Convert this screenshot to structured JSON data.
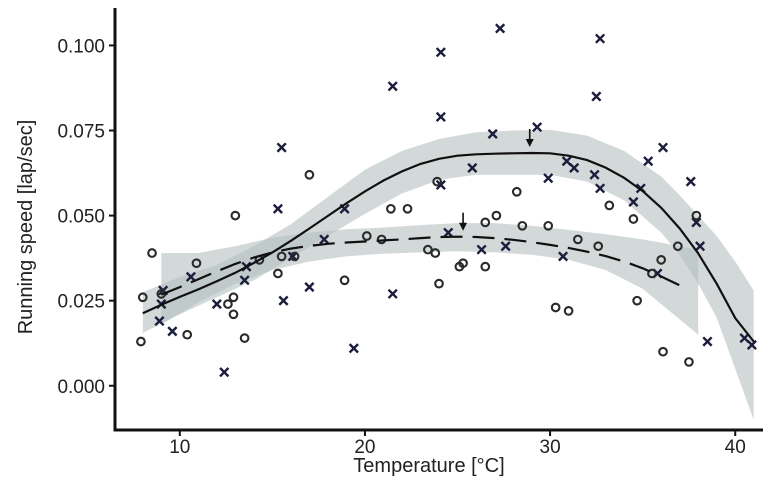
{
  "chart_data": {
    "type": "scatter",
    "title": "",
    "xlabel": "Temperature [°C]",
    "ylabel": "Running speed [lap/sec]",
    "xlim": [
      6.5,
      41.5
    ],
    "ylim": [
      -0.013,
      0.111
    ],
    "x_ticks": [
      {
        "value": 10,
        "label": "10"
      },
      {
        "value": 20,
        "label": "20"
      },
      {
        "value": 30,
        "label": "30"
      },
      {
        "value": 40,
        "label": "40"
      }
    ],
    "y_ticks": [
      {
        "value": 0.0,
        "label": "0.000"
      },
      {
        "value": 0.025,
        "label": "0.025"
      },
      {
        "value": 0.05,
        "label": "0.050"
      },
      {
        "value": 0.075,
        "label": "0.075"
      },
      {
        "value": 0.1,
        "label": "0.100"
      }
    ],
    "grid": false,
    "legend": null,
    "colors": {
      "ribbon": "#b6c0c0",
      "cross": "#1c1c3c",
      "circle": "#2a2a2a",
      "fit": "#111111"
    },
    "series": [
      {
        "marker": "cross",
        "fit_style": "solid",
        "points": [
          [
            8.9,
            0.019
          ],
          [
            9.0,
            0.024
          ],
          [
            9.1,
            0.028
          ],
          [
            9.6,
            0.016
          ],
          [
            10.6,
            0.032
          ],
          [
            12.0,
            0.024
          ],
          [
            12.4,
            0.004
          ],
          [
            13.5,
            0.031
          ],
          [
            13.6,
            0.035
          ],
          [
            15.3,
            0.052
          ],
          [
            15.5,
            0.07
          ],
          [
            15.6,
            0.025
          ],
          [
            16.1,
            0.038
          ],
          [
            17.0,
            0.029
          ],
          [
            17.8,
            0.043
          ],
          [
            18.9,
            0.052
          ],
          [
            19.4,
            0.011
          ],
          [
            21.5,
            0.027
          ],
          [
            21.5,
            0.088
          ],
          [
            24.1,
            0.098
          ],
          [
            24.1,
            0.079
          ],
          [
            24.1,
            0.059
          ],
          [
            24.5,
            0.045
          ],
          [
            25.8,
            0.064
          ],
          [
            26.3,
            0.04
          ],
          [
            26.9,
            0.074
          ],
          [
            27.3,
            0.105
          ],
          [
            27.6,
            0.041
          ],
          [
            29.3,
            0.076
          ],
          [
            29.9,
            0.061
          ],
          [
            30.7,
            0.038
          ],
          [
            30.9,
            0.066
          ],
          [
            31.3,
            0.064
          ],
          [
            32.4,
            0.062
          ],
          [
            32.5,
            0.085
          ],
          [
            32.7,
            0.058
          ],
          [
            32.7,
            0.102
          ],
          [
            34.5,
            0.054
          ],
          [
            34.9,
            0.058
          ],
          [
            35.3,
            0.066
          ],
          [
            35.8,
            0.033
          ],
          [
            36.1,
            0.07
          ],
          [
            37.6,
            0.06
          ],
          [
            37.9,
            0.048
          ],
          [
            38.1,
            0.041
          ],
          [
            38.5,
            0.013
          ],
          [
            40.5,
            0.014
          ],
          [
            40.9,
            0.012
          ]
        ],
        "fit": [
          [
            8,
            0.0213
          ],
          [
            9,
            0.0238
          ],
          [
            10,
            0.0261
          ],
          [
            11,
            0.0283
          ],
          [
            12,
            0.0307
          ],
          [
            13,
            0.0332
          ],
          [
            14,
            0.0361
          ],
          [
            15,
            0.0392
          ],
          [
            16,
            0.0426
          ],
          [
            17,
            0.0462
          ],
          [
            18,
            0.0499
          ],
          [
            19,
            0.0536
          ],
          [
            20,
            0.0571
          ],
          [
            21,
            0.0603
          ],
          [
            22,
            0.063
          ],
          [
            23,
            0.0652
          ],
          [
            24,
            0.0667
          ],
          [
            25,
            0.0676
          ],
          [
            26,
            0.068
          ],
          [
            27,
            0.0682
          ],
          [
            28,
            0.0683
          ],
          [
            29,
            0.0684
          ],
          [
            30,
            0.0683
          ],
          [
            31,
            0.0676
          ],
          [
            32,
            0.0663
          ],
          [
            33,
            0.0641
          ],
          [
            34,
            0.0611
          ],
          [
            35,
            0.0572
          ],
          [
            36,
            0.0523
          ],
          [
            37,
            0.0462
          ],
          [
            38,
            0.0389
          ],
          [
            39,
            0.03
          ],
          [
            40,
            0.0199
          ],
          [
            41,
            0.013
          ]
        ],
        "ribbon_lower": [
          [
            8,
            0.0155
          ],
          [
            10,
            0.021
          ],
          [
            12,
            0.026
          ],
          [
            14,
            0.031
          ],
          [
            16,
            0.0375
          ],
          [
            18,
            0.044
          ],
          [
            20,
            0.0505
          ],
          [
            22,
            0.0565
          ],
          [
            24,
            0.0605
          ],
          [
            26,
            0.062
          ],
          [
            28,
            0.062
          ],
          [
            30,
            0.062
          ],
          [
            32,
            0.06
          ],
          [
            34,
            0.0545
          ],
          [
            36,
            0.045
          ],
          [
            37,
            0.0385
          ],
          [
            38,
            0.03
          ],
          [
            39,
            0.02
          ],
          [
            40,
            0.005
          ],
          [
            41,
            -0.01
          ]
        ],
        "ribbon_upper": [
          [
            8,
            0.0275
          ],
          [
            10,
            0.032
          ],
          [
            12,
            0.0355
          ],
          [
            14,
            0.041
          ],
          [
            16,
            0.0475
          ],
          [
            18,
            0.0555
          ],
          [
            20,
            0.0635
          ],
          [
            22,
            0.069
          ],
          [
            24,
            0.0725
          ],
          [
            26,
            0.0745
          ],
          [
            28,
            0.075
          ],
          [
            30,
            0.0752
          ],
          [
            32,
            0.0735
          ],
          [
            34,
            0.069
          ],
          [
            36,
            0.0615
          ],
          [
            37,
            0.056
          ],
          [
            38,
            0.05
          ],
          [
            39,
            0.044
          ],
          [
            40,
            0.0365
          ],
          [
            41,
            0.028
          ]
        ],
        "peak_x": 28.9
      },
      {
        "marker": "circle",
        "fit_style": "dashed",
        "points": [
          [
            7.9,
            0.013
          ],
          [
            8.0,
            0.026
          ],
          [
            8.5,
            0.039
          ],
          [
            9.0,
            0.027
          ],
          [
            10.4,
            0.015
          ],
          [
            10.9,
            0.036
          ],
          [
            12.6,
            0.024
          ],
          [
            12.9,
            0.026
          ],
          [
            12.9,
            0.021
          ],
          [
            13.0,
            0.05
          ],
          [
            13.5,
            0.014
          ],
          [
            14.3,
            0.037
          ],
          [
            15.3,
            0.033
          ],
          [
            15.5,
            0.038
          ],
          [
            16.2,
            0.038
          ],
          [
            17.0,
            0.062
          ],
          [
            18.9,
            0.031
          ],
          [
            20.1,
            0.044
          ],
          [
            20.9,
            0.043
          ],
          [
            21.4,
            0.052
          ],
          [
            22.3,
            0.052
          ],
          [
            23.4,
            0.04
          ],
          [
            23.8,
            0.039
          ],
          [
            23.9,
            0.06
          ],
          [
            24.0,
            0.03
          ],
          [
            25.1,
            0.035
          ],
          [
            25.3,
            0.036
          ],
          [
            26.5,
            0.048
          ],
          [
            26.5,
            0.035
          ],
          [
            27.1,
            0.05
          ],
          [
            28.2,
            0.057
          ],
          [
            28.5,
            0.047
          ],
          [
            29.9,
            0.047
          ],
          [
            30.3,
            0.023
          ],
          [
            31.0,
            0.022
          ],
          [
            31.5,
            0.043
          ],
          [
            32.6,
            0.041
          ],
          [
            33.2,
            0.053
          ],
          [
            34.5,
            0.049
          ],
          [
            34.7,
            0.025
          ],
          [
            35.5,
            0.033
          ],
          [
            36.0,
            0.037
          ],
          [
            36.1,
            0.01
          ],
          [
            36.9,
            0.041
          ],
          [
            37.5,
            0.007
          ],
          [
            37.9,
            0.05
          ]
        ],
        "fit": [
          [
            9,
            0.0268
          ],
          [
            10,
            0.029
          ],
          [
            11,
            0.0313
          ],
          [
            12,
            0.0336
          ],
          [
            13,
            0.0358
          ],
          [
            14,
            0.0377
          ],
          [
            15,
            0.0392
          ],
          [
            16,
            0.0403
          ],
          [
            17,
            0.0411
          ],
          [
            18,
            0.0417
          ],
          [
            19,
            0.0421
          ],
          [
            20,
            0.0424
          ],
          [
            21,
            0.0427
          ],
          [
            22,
            0.043
          ],
          [
            23,
            0.0434
          ],
          [
            24,
            0.0437
          ],
          [
            25,
            0.0438
          ],
          [
            26,
            0.0437
          ],
          [
            27,
            0.0434
          ],
          [
            28,
            0.0429
          ],
          [
            29,
            0.0422
          ],
          [
            30,
            0.0414
          ],
          [
            31,
            0.0405
          ],
          [
            32,
            0.0394
          ],
          [
            33,
            0.0381
          ],
          [
            34,
            0.0365
          ],
          [
            35,
            0.0345
          ],
          [
            36,
            0.0321
          ],
          [
            37,
            0.0295
          ]
        ],
        "ribbon_lower": [
          [
            9,
            0.018
          ],
          [
            11,
            0.0245
          ],
          [
            13,
            0.03
          ],
          [
            15,
            0.034
          ],
          [
            17,
            0.0365
          ],
          [
            19,
            0.038
          ],
          [
            21,
            0.0388
          ],
          [
            23,
            0.0392
          ],
          [
            25,
            0.0395
          ],
          [
            27,
            0.0392
          ],
          [
            29,
            0.0385
          ],
          [
            31,
            0.037
          ],
          [
            33,
            0.034
          ],
          [
            35,
            0.0285
          ],
          [
            36,
            0.024
          ],
          [
            37,
            0.0195
          ],
          [
            38,
            0.015
          ]
        ],
        "ribbon_upper": [
          [
            9,
            0.039
          ],
          [
            11,
            0.039
          ],
          [
            13,
            0.041
          ],
          [
            15,
            0.0435
          ],
          [
            17,
            0.045
          ],
          [
            19,
            0.046
          ],
          [
            21,
            0.0465
          ],
          [
            23,
            0.0472
          ],
          [
            25,
            0.0478
          ],
          [
            27,
            0.0478
          ],
          [
            29,
            0.047
          ],
          [
            31,
            0.0458
          ],
          [
            33,
            0.0445
          ],
          [
            35,
            0.043
          ],
          [
            36,
            0.042
          ],
          [
            37,
            0.041
          ],
          [
            38,
            0.04
          ]
        ],
        "peak_x": 25.3
      }
    ]
  }
}
